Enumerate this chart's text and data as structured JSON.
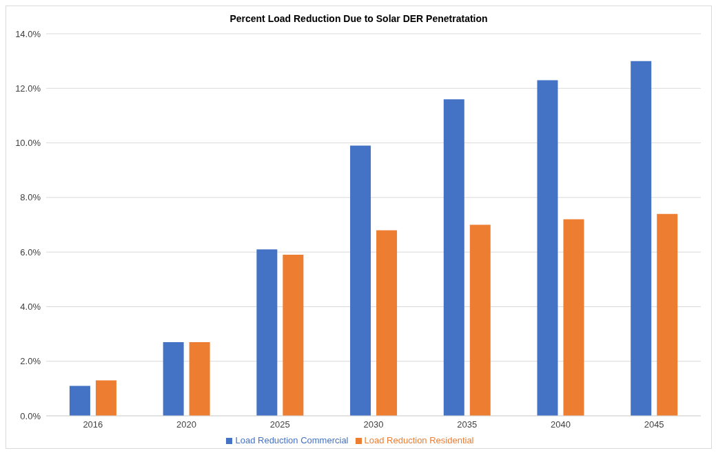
{
  "chart_data": {
    "type": "bar",
    "title": "Percent Load Reduction Due to Solar DER Penetratation",
    "categories": [
      "2016",
      "2020",
      "2025",
      "2030",
      "2035",
      "2040",
      "2045"
    ],
    "series": [
      {
        "name": "Load Reduction Commercial",
        "color": "#4472c4",
        "values": [
          1.1,
          2.7,
          6.1,
          9.9,
          11.6,
          12.3,
          13.0
        ]
      },
      {
        "name": "Load Reduction Residential",
        "color": "#ed7d31",
        "values": [
          1.3,
          2.7,
          5.9,
          6.8,
          7.0,
          7.2,
          7.4
        ]
      }
    ],
    "ylim": [
      0,
      14
    ],
    "yticks": [
      {
        "value": 0,
        "label": "0.0%"
      },
      {
        "value": 2,
        "label": "2.0%"
      },
      {
        "value": 4,
        "label": "4.0%"
      },
      {
        "value": 6,
        "label": "6.0%"
      },
      {
        "value": 8,
        "label": "8.0%"
      },
      {
        "value": 10,
        "label": "10.0%"
      },
      {
        "value": 12,
        "label": "12.0%"
      },
      {
        "value": 14,
        "label": "14.0%"
      }
    ],
    "grid": "y",
    "legend": "bottom"
  }
}
